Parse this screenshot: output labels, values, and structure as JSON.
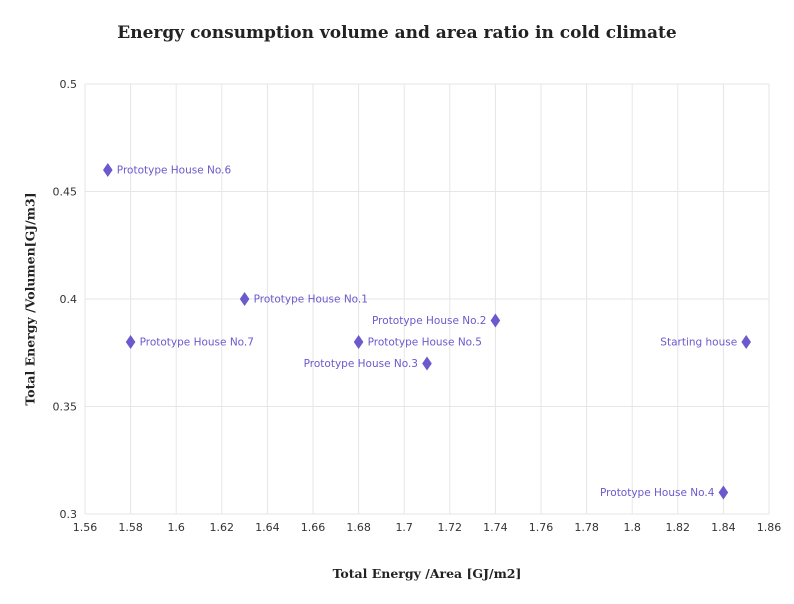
{
  "title": "Energy consumption volume and area ratio in cold climate",
  "chart_data": {
    "type": "scatter",
    "title": "Energy consumption volume and area ratio in cold climate",
    "xlabel": "Total Energy /Area [GJ/m2]",
    "ylabel": "Total Energy /Volumen[GJ/m3]",
    "xlim": [
      1.56,
      1.86
    ],
    "ylim": [
      0.3,
      0.5
    ],
    "x_tick_labels": [
      "1.56",
      "1.58",
      "1.6",
      "1.62",
      "1.64",
      "1.66",
      "1.68",
      "1.7",
      "1.72",
      "1.74",
      "1.76",
      "1.78",
      "1.8",
      "1.82",
      "1.84",
      "1.86"
    ],
    "y_tick_labels": [
      "0.3",
      "0.35",
      "0.4",
      "0.45",
      "0.5"
    ],
    "grid": true,
    "legend": "none",
    "marker": "diamond-tall",
    "marker_color": "#6A5ACD",
    "label_color": "#6A5ACD",
    "grid_color": "#e6e6e6",
    "points": [
      {
        "label": "Prototype House No.6",
        "x": 1.57,
        "y": 0.46,
        "label_side": "right"
      },
      {
        "label": "Prototype House No.1",
        "x": 1.63,
        "y": 0.4,
        "label_side": "right"
      },
      {
        "label": "Prototype House No.2",
        "x": 1.74,
        "y": 0.39,
        "label_side": "left"
      },
      {
        "label": "Prototype House No.7",
        "x": 1.58,
        "y": 0.38,
        "label_side": "right"
      },
      {
        "label": "Prototype House No.5",
        "x": 1.68,
        "y": 0.38,
        "label_side": "right"
      },
      {
        "label": "Prototype House No.3",
        "x": 1.71,
        "y": 0.37,
        "label_side": "left"
      },
      {
        "label": "Starting house",
        "x": 1.85,
        "y": 0.38,
        "label_side": "left"
      },
      {
        "label": "Prototype House No.4",
        "x": 1.84,
        "y": 0.31,
        "label_side": "left"
      }
    ]
  }
}
